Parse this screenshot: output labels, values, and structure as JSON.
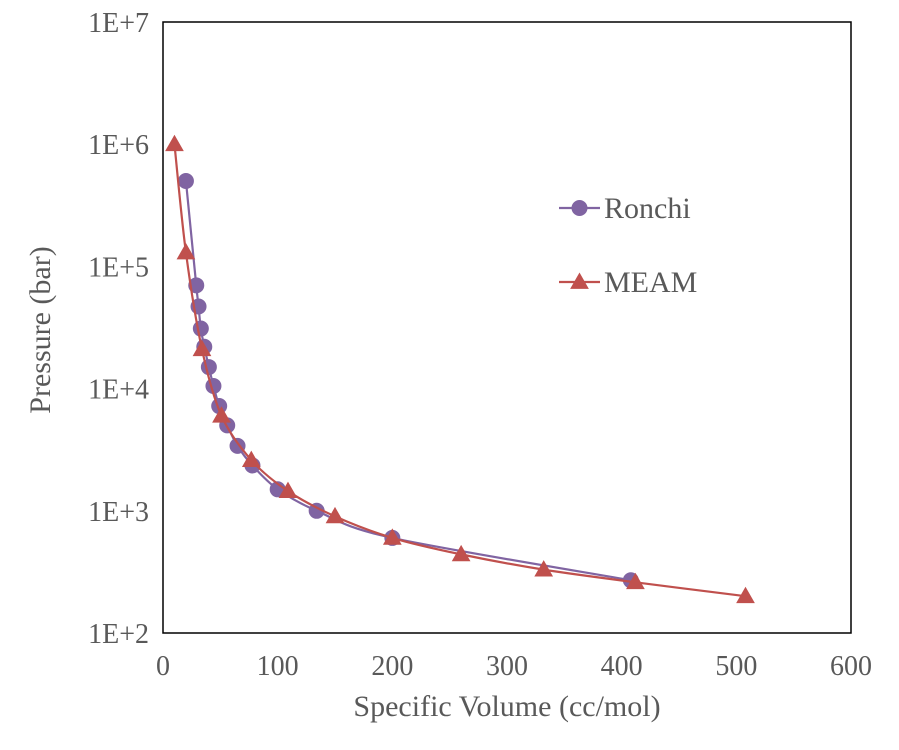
{
  "chart_data": {
    "type": "line",
    "title": "",
    "xlabel": "Specific Volume (cc/mol)",
    "ylabel": "Pressure (bar)",
    "xlim": [
      0,
      600
    ],
    "ylim": [
      100,
      10000000
    ],
    "yscale": "log",
    "xticks": [
      "0",
      "100",
      "200",
      "300",
      "400",
      "500",
      "600"
    ],
    "yticks": [
      "1E+2",
      "1E+3",
      "1E+4",
      "1E+5",
      "1E+6",
      "1E+7"
    ],
    "grid": false,
    "legend_position": "right",
    "series": [
      {
        "name": "Ronchi",
        "color": "#8064a2",
        "marker": "circle",
        "x": [
          20,
          29,
          31,
          33,
          36,
          40,
          44,
          49,
          56,
          65,
          78,
          100,
          134,
          200,
          408
        ],
        "y": [
          500000,
          70000,
          47000,
          31000,
          22000,
          15000,
          10500,
          7200,
          5000,
          3400,
          2350,
          1500,
          1000,
          600,
          270
        ]
      },
      {
        "name": "MEAM",
        "color": "#c0504d",
        "marker": "triangle",
        "x": [
          10,
          20,
          34,
          51,
          77,
          109,
          150,
          200,
          260,
          332,
          412,
          508
        ],
        "y": [
          1000000,
          130000,
          21000,
          6000,
          2600,
          1450,
          900,
          600,
          440,
          330,
          260,
          200
        ]
      }
    ]
  }
}
